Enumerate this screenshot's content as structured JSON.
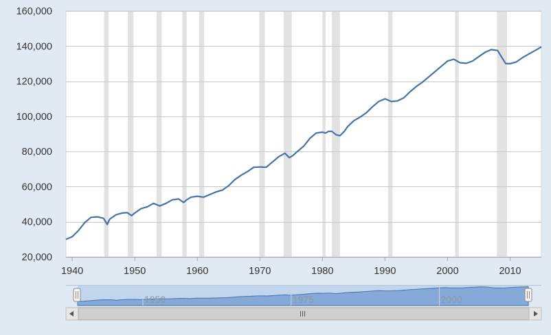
{
  "chart_data": {
    "type": "line",
    "title": "",
    "xlabel": "",
    "ylabel": "",
    "xlim": [
      1939,
      2015
    ],
    "ylim": [
      20000,
      160000
    ],
    "grid": true,
    "y_ticks": [
      20000,
      40000,
      60000,
      80000,
      100000,
      120000,
      140000,
      160000
    ],
    "y_tick_labels": [
      "20,000",
      "40,000",
      "60,000",
      "80,000",
      "100,000",
      "120,000",
      "140,000",
      "160,000"
    ],
    "x_ticks": [
      1940,
      1950,
      1960,
      1970,
      1980,
      1990,
      2000,
      2010
    ],
    "x_tick_labels": [
      "1940",
      "1950",
      "1960",
      "1970",
      "1980",
      "1990",
      "2000",
      "2010"
    ],
    "shaded_periods": [
      [
        1945.1,
        1945.8
      ],
      [
        1948.9,
        1949.8
      ],
      [
        1953.5,
        1954.3
      ],
      [
        1957.6,
        1958.3
      ],
      [
        1960.3,
        1961.1
      ],
      [
        1969.9,
        1970.8
      ],
      [
        1973.8,
        1975.1
      ],
      [
        1980.0,
        1980.5
      ],
      [
        1981.5,
        1982.8
      ],
      [
        1990.5,
        1991.2
      ],
      [
        2001.2,
        2001.8
      ],
      [
        2007.9,
        2009.5
      ]
    ],
    "series": [
      {
        "color": "#4572a7",
        "x": [
          1939,
          1940,
          1941,
          1942,
          1943,
          1944,
          1945,
          1945.6,
          1946,
          1947,
          1948,
          1948.8,
          1949.5,
          1950,
          1951,
          1952,
          1953,
          1954,
          1955,
          1956,
          1957,
          1957.8,
          1958.3,
          1959,
          1960,
          1961,
          1962,
          1963,
          1964,
          1965,
          1966,
          1967,
          1968,
          1969,
          1970,
          1971,
          1972,
          1973,
          1974,
          1974.7,
          1975.2,
          1976,
          1977,
          1978,
          1979,
          1980,
          1980.5,
          1981,
          1981.5,
          1982.2,
          1982.8,
          1983.5,
          1984,
          1985,
          1986,
          1987,
          1988,
          1989,
          1990,
          1991,
          1992,
          1993,
          1994,
          1995,
          1996,
          1997,
          1998,
          1999,
          2000,
          2001,
          2002,
          2003,
          2004,
          2005,
          2006,
          2007,
          2008,
          2008.6,
          2009.3,
          2010,
          2011,
          2012,
          2013,
          2014,
          2015
        ],
        "values": [
          30000,
          31500,
          35000,
          39500,
          42500,
          42800,
          42000,
          38500,
          41500,
          44000,
          45000,
          45200,
          43500,
          45000,
          47500,
          48500,
          50500,
          49000,
          50500,
          52500,
          53000,
          51000,
          52500,
          54000,
          54500,
          54000,
          55500,
          57000,
          58000,
          60500,
          64000,
          66500,
          68500,
          71000,
          71200,
          71000,
          74000,
          77000,
          79000,
          76500,
          77500,
          80000,
          83000,
          87500,
          90500,
          91000,
          90500,
          91500,
          91500,
          89500,
          89000,
          91500,
          94000,
          97500,
          99500,
          102000,
          105500,
          108500,
          110000,
          108500,
          108800,
          110500,
          114000,
          117000,
          119500,
          122500,
          125500,
          128500,
          131500,
          132500,
          130500,
          130200,
          131500,
          134000,
          136500,
          138000,
          137500,
          134000,
          130000,
          130000,
          131000,
          133500,
          135500,
          137500,
          139500
        ]
      }
    ],
    "navigator": {
      "labels": [
        "1950",
        "1975",
        "2000"
      ],
      "label_years": [
        1950,
        1975,
        2000
      ]
    }
  }
}
